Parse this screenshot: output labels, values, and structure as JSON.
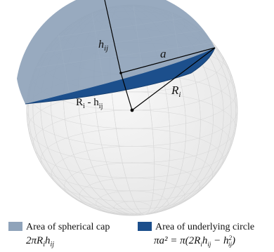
{
  "diagram": {
    "labels": {
      "h_ij_upper": {
        "base": "h",
        "sub": "ij"
      },
      "a": "a",
      "R_i": {
        "base": "R",
        "sub": "i"
      },
      "R_i_minus_h_ij": {
        "left": "R",
        "left_sub": "i",
        "minus": " - h",
        "right_sub": "ij"
      }
    },
    "colors": {
      "cap": "#8fa3ba",
      "base_circle": "#1c4f8c",
      "sphere": "#efefef",
      "wire": "#d5d5d5",
      "lines": "#000000"
    }
  },
  "legend": {
    "cap": {
      "label": "Area of spherical cap",
      "formula": "2πR",
      "formula_sub1": "i",
      "formula_mid": "h",
      "formula_sub2": "ij"
    },
    "circle": {
      "label": "Area of underlying circle",
      "formula_prefix": "πa² = π(2R",
      "formula_sub1": "i",
      "formula_mid": "h",
      "formula_sub2": "ij",
      "formula_minus": " − h",
      "formula_sub3": "ij",
      "formula_sup": "2",
      "formula_close": ")"
    }
  }
}
